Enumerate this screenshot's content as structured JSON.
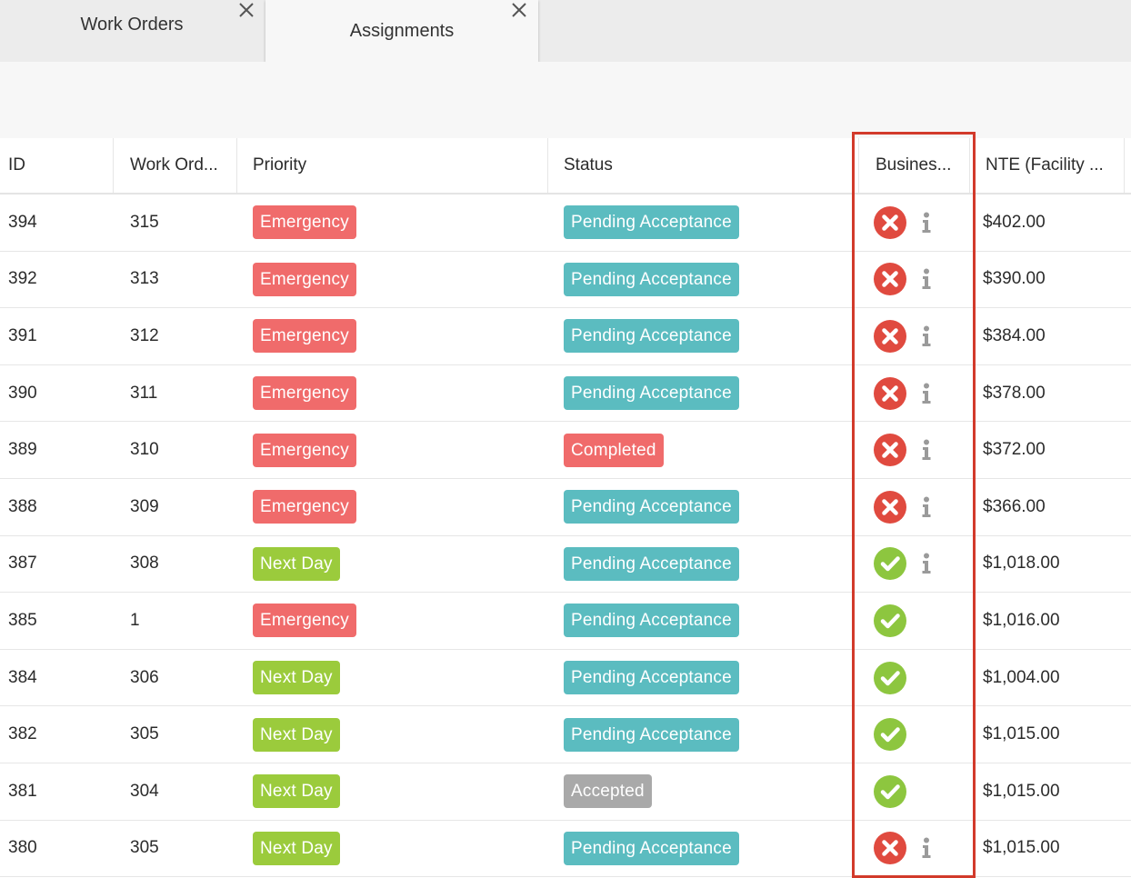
{
  "tabs": [
    {
      "label": "Work Orders",
      "active": false
    },
    {
      "label": "Assignments",
      "active": true
    }
  ],
  "columns": {
    "id": "ID",
    "work_order": "Work Ord...",
    "priority": "Priority",
    "status": "Status",
    "business": "Busines...",
    "nte": "NTE (Facility ..."
  },
  "colors": {
    "emergency": "#f06b6b",
    "next_day": "#9bcb3c",
    "pending": "#5bbcc0",
    "completed": "#f06b6b",
    "accepted": "#a9a9a9",
    "fail_icon": "#e04a3f",
    "pass_icon": "#8dc63f",
    "info_icon": "#9a9a9a",
    "highlight": "#d23a2b"
  },
  "rows": [
    {
      "id": "394",
      "work_order": "315",
      "priority": "Emergency",
      "priority_type": "emergency",
      "status": "Pending Acceptance",
      "status_type": "pending",
      "business_check": "fail",
      "info": true,
      "nte": "$402.00"
    },
    {
      "id": "392",
      "work_order": "313",
      "priority": "Emergency",
      "priority_type": "emergency",
      "status": "Pending Acceptance",
      "status_type": "pending",
      "business_check": "fail",
      "info": true,
      "nte": "$390.00"
    },
    {
      "id": "391",
      "work_order": "312",
      "priority": "Emergency",
      "priority_type": "emergency",
      "status": "Pending Acceptance",
      "status_type": "pending",
      "business_check": "fail",
      "info": true,
      "nte": "$384.00"
    },
    {
      "id": "390",
      "work_order": "311",
      "priority": "Emergency",
      "priority_type": "emergency",
      "status": "Pending Acceptance",
      "status_type": "pending",
      "business_check": "fail",
      "info": true,
      "nte": "$378.00"
    },
    {
      "id": "389",
      "work_order": "310",
      "priority": "Emergency",
      "priority_type": "emergency",
      "status": "Completed",
      "status_type": "completed",
      "business_check": "fail",
      "info": true,
      "nte": "$372.00"
    },
    {
      "id": "388",
      "work_order": "309",
      "priority": "Emergency",
      "priority_type": "emergency",
      "status": "Pending Acceptance",
      "status_type": "pending",
      "business_check": "fail",
      "info": true,
      "nte": "$366.00"
    },
    {
      "id": "387",
      "work_order": "308",
      "priority": "Next Day",
      "priority_type": "next_day",
      "status": "Pending Acceptance",
      "status_type": "pending",
      "business_check": "pass",
      "info": true,
      "nte": "$1,018.00"
    },
    {
      "id": "385",
      "work_order": "1",
      "priority": "Emergency",
      "priority_type": "emergency",
      "status": "Pending Acceptance",
      "status_type": "pending",
      "business_check": "pass",
      "info": false,
      "nte": "$1,016.00"
    },
    {
      "id": "384",
      "work_order": "306",
      "priority": "Next Day",
      "priority_type": "next_day",
      "status": "Pending Acceptance",
      "status_type": "pending",
      "business_check": "pass",
      "info": false,
      "nte": "$1,004.00"
    },
    {
      "id": "382",
      "work_order": "305",
      "priority": "Next Day",
      "priority_type": "next_day",
      "status": "Pending Acceptance",
      "status_type": "pending",
      "business_check": "pass",
      "info": false,
      "nte": "$1,015.00"
    },
    {
      "id": "381",
      "work_order": "304",
      "priority": "Next Day",
      "priority_type": "next_day",
      "status": "Accepted",
      "status_type": "accepted",
      "business_check": "pass",
      "info": false,
      "nte": "$1,015.00"
    },
    {
      "id": "380",
      "work_order": "305",
      "priority": "Next Day",
      "priority_type": "next_day",
      "status": "Pending Acceptance",
      "status_type": "pending",
      "business_check": "fail",
      "info": true,
      "nte": "$1,015.00"
    }
  ]
}
